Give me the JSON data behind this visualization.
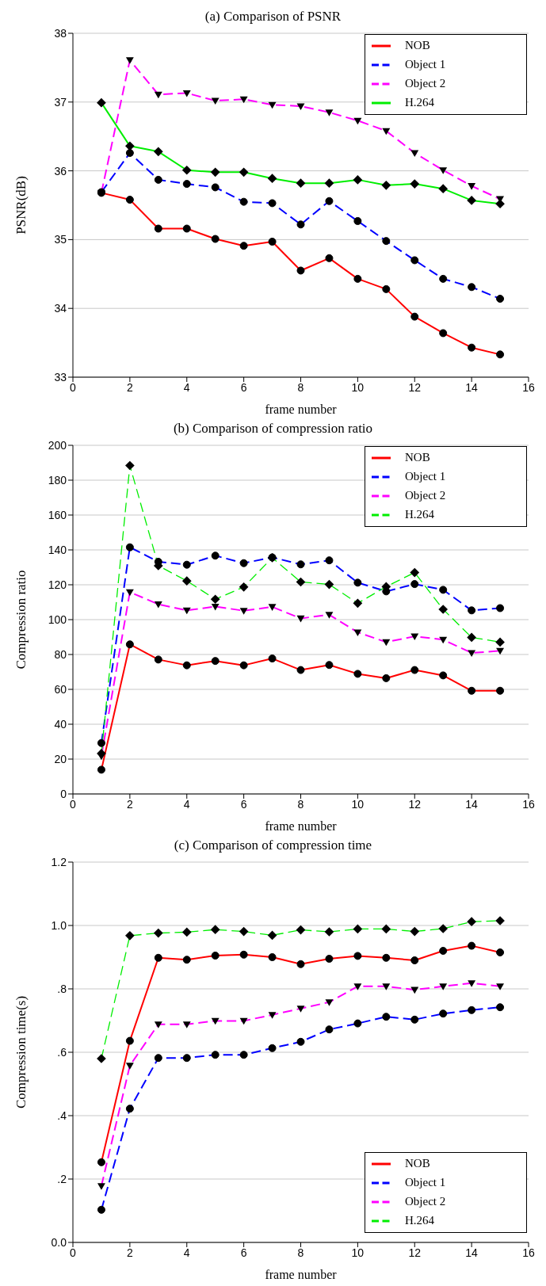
{
  "chart_data": [
    {
      "type": "line",
      "title": "(a) Comparison of PSNR",
      "xlabel": "frame number",
      "ylabel": "PSNR(dB)",
      "x": [
        1,
        2,
        3,
        4,
        5,
        6,
        7,
        8,
        9,
        10,
        11,
        12,
        13,
        14,
        15
      ],
      "xlim": [
        0,
        16
      ],
      "xticks": [
        0,
        2,
        4,
        6,
        8,
        10,
        12,
        14,
        16
      ],
      "ylim": [
        33,
        38
      ],
      "yticks": [
        33,
        34,
        35,
        36,
        37,
        38
      ],
      "grid": "y",
      "legend": "top right",
      "series": [
        {
          "name": "NOB",
          "color": "#ff0000",
          "marker": "circle",
          "line_style": "solid",
          "values": [
            35.68,
            35.58,
            35.16,
            35.16,
            35.01,
            34.91,
            34.97,
            34.55,
            34.73,
            34.43,
            34.28,
            33.88,
            33.64,
            33.43,
            33.33
          ]
        },
        {
          "name": "Object 1",
          "color": "#0000ff",
          "marker": "circle",
          "line_style": "dashed",
          "values": [
            35.69,
            36.26,
            35.87,
            35.81,
            35.76,
            35.55,
            35.53,
            35.22,
            35.56,
            35.27,
            34.98,
            34.7,
            34.43,
            34.31,
            34.14
          ]
        },
        {
          "name": "Object 2",
          "color": "#ff00ff",
          "marker": "triangle",
          "line_style": "dashed",
          "values": [
            35.68,
            37.61,
            37.11,
            37.13,
            37.02,
            37.04,
            36.96,
            36.94,
            36.85,
            36.73,
            36.58,
            36.26,
            36.01,
            35.78,
            35.59
          ]
        },
        {
          "name": "H.264",
          "color": "#00ee00",
          "marker": "diamond",
          "line_style": "solid",
          "values": [
            36.99,
            36.36,
            36.28,
            36.01,
            35.98,
            35.98,
            35.89,
            35.82,
            35.82,
            35.87,
            35.79,
            35.81,
            35.74,
            35.57,
            35.52
          ]
        }
      ]
    },
    {
      "type": "line",
      "title": "(b) Comparison of compression ratio",
      "xlabel": "frame number",
      "ylabel": "Compression ratio",
      "x": [
        1,
        2,
        3,
        4,
        5,
        6,
        7,
        8,
        9,
        10,
        11,
        12,
        13,
        14,
        15
      ],
      "xlim": [
        0,
        16
      ],
      "xticks": [
        0,
        2,
        4,
        6,
        8,
        10,
        12,
        14,
        16
      ],
      "ylim": [
        0,
        200
      ],
      "yticks": [
        0,
        20,
        40,
        60,
        80,
        100,
        120,
        140,
        160,
        180,
        200
      ],
      "grid": "y",
      "legend": "top right",
      "series": [
        {
          "name": "NOB",
          "color": "#ff0000",
          "marker": "circle",
          "line_style": "solid",
          "values": [
            13.9,
            85.8,
            77.1,
            73.8,
            76.3,
            73.8,
            77.7,
            71.1,
            74,
            68.9,
            66.4,
            71.1,
            68,
            59.2,
            59.2
          ]
        },
        {
          "name": "Object 1",
          "color": "#0000ff",
          "marker": "circle",
          "line_style": "dashed",
          "values": [
            29.2,
            141.5,
            133.2,
            131.5,
            136.7,
            132.4,
            135.7,
            131.7,
            134,
            121.2,
            116.2,
            120.4,
            117.1,
            105.3,
            106.6
          ]
        },
        {
          "name": "Object 2",
          "color": "#ff00ff",
          "marker": "triangle",
          "line_style": "dashed",
          "values": [
            21.7,
            115.8,
            108.8,
            105.3,
            107.5,
            105.1,
            107.3,
            100.7,
            102.8,
            92.7,
            87.1,
            90.4,
            88.5,
            80.9,
            82.1
          ]
        },
        {
          "name": "H.264",
          "color": "#00ee00",
          "marker": "diamond",
          "line_style": "dashed",
          "values": [
            23.2,
            188.4,
            130.9,
            122.2,
            111.7,
            118.7,
            135.5,
            121.6,
            120.2,
            109.4,
            118.9,
            127,
            105.9,
            89.8,
            87.1
          ]
        }
      ]
    },
    {
      "type": "line",
      "title": "(c) Comparison of compression time",
      "xlabel": "frame number",
      "ylabel": "Compression time(s)",
      "x": [
        1,
        2,
        3,
        4,
        5,
        6,
        7,
        8,
        9,
        10,
        11,
        12,
        13,
        14,
        15
      ],
      "xlim": [
        0,
        16
      ],
      "xticks": [
        0,
        2,
        4,
        6,
        8,
        10,
        12,
        14,
        16
      ],
      "ylim": [
        0,
        1.2
      ],
      "yticks": [
        {
          "value": 0,
          "label": "0.0"
        },
        {
          "value": 0.2,
          "label": ".2"
        },
        {
          "value": 0.4,
          "label": ".4"
        },
        {
          "value": 0.6,
          "label": ".6"
        },
        {
          "value": 0.8,
          "label": ".8"
        },
        {
          "value": 1,
          "label": "1.0"
        },
        {
          "value": 1.2,
          "label": "1.2"
        }
      ],
      "grid": "y",
      "legend": "bottom right",
      "series": [
        {
          "name": "NOB",
          "color": "#ff0000",
          "marker": "circle",
          "line_style": "solid",
          "values": [
            0.253,
            0.636,
            0.898,
            0.892,
            0.905,
            0.908,
            0.9,
            0.878,
            0.895,
            0.904,
            0.898,
            0.89,
            0.92,
            0.936,
            0.915
          ]
        },
        {
          "name": "Object 1",
          "color": "#0000ff",
          "marker": "circle",
          "line_style": "dashed",
          "values": [
            0.103,
            0.422,
            0.582,
            0.582,
            0.592,
            0.592,
            0.613,
            0.633,
            0.672,
            0.691,
            0.712,
            0.703,
            0.722,
            0.733,
            0.742
          ]
        },
        {
          "name": "Object 2",
          "color": "#ff00ff",
          "marker": "triangle",
          "line_style": "dashed",
          "values": [
            0.178,
            0.558,
            0.688,
            0.688,
            0.699,
            0.699,
            0.718,
            0.738,
            0.758,
            0.808,
            0.808,
            0.797,
            0.808,
            0.818,
            0.808
          ]
        },
        {
          "name": "H.264",
          "color": "#00ee00",
          "marker": "diamond",
          "line_style": "dashed",
          "values": [
            0.58,
            0.968,
            0.976,
            0.979,
            0.987,
            0.981,
            0.969,
            0.986,
            0.98,
            0.989,
            0.989,
            0.981,
            0.99,
            1.012,
            1.015
          ]
        }
      ]
    }
  ]
}
